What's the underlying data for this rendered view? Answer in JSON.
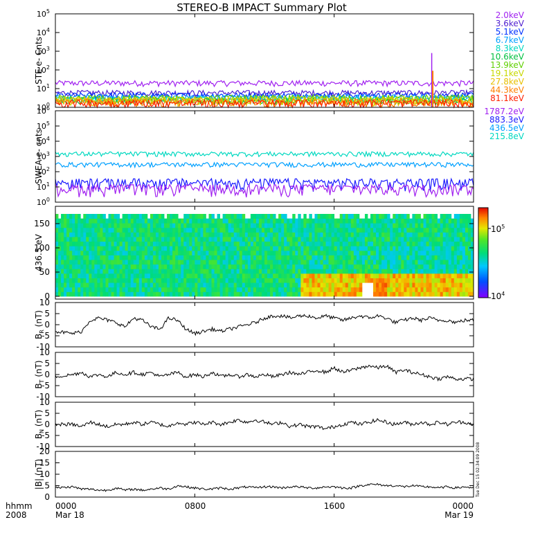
{
  "title": "STEREO-B IMPACT Summary Plot",
  "footer": {
    "hhmm_label": "hhmm",
    "year_label": "2008",
    "ticks": [
      "0000",
      "0800",
      "1600",
      "0000"
    ],
    "dates": [
      "Mar 18",
      "Mar 19"
    ],
    "timestamp": "Tue Dec 15 02:34:09 2008"
  },
  "chart_data": [
    {
      "type": "line",
      "panel": "ste",
      "ylabel": "STE e- Cnts",
      "yscale": "log",
      "ylim": [
        1,
        100000
      ],
      "yticks": [
        1,
        10,
        100,
        1000,
        10000,
        100000
      ],
      "x_range_hours": [
        0,
        24
      ],
      "legend_placement": "right",
      "series": [
        {
          "name": "2.0keV",
          "color": "#a020f0",
          "level": 20
        },
        {
          "name": "3.6keV",
          "color": "#5020d0",
          "level": 6
        },
        {
          "name": "5.1keV",
          "color": "#0030ff",
          "level": 4.5
        },
        {
          "name": "6.7keV",
          "color": "#00a0ff",
          "level": 3.5
        },
        {
          "name": "8.3keV",
          "color": "#00d8c0",
          "level": 2.8
        },
        {
          "name": "10.6keV",
          "color": "#00c040",
          "level": 2.2
        },
        {
          "name": "13.9keV",
          "color": "#60d000",
          "level": 1.9
        },
        {
          "name": "19.1keV",
          "color": "#c8d800",
          "level": 1.6
        },
        {
          "name": "27.8keV",
          "color": "#e8c000",
          "level": 1.4
        },
        {
          "name": "44.3keV",
          "color": "#ff8000",
          "level": 1.2
        },
        {
          "name": "81.1keV",
          "color": "#ff2000",
          "level": 1.05
        }
      ]
    },
    {
      "type": "line",
      "panel": "swea",
      "ylabel": "SWEA e- cnts",
      "yscale": "log",
      "ylim": [
        1,
        1000000
      ],
      "yticks": [
        1,
        10,
        100,
        1000,
        10000,
        100000,
        1000000
      ],
      "x_range_hours": [
        0,
        24
      ],
      "legend_placement": "right",
      "series": [
        {
          "name": "1787.2eV",
          "color": "#a020f0",
          "level": 5
        },
        {
          "name": "883.3eV",
          "color": "#1a1aff",
          "level": 12
        },
        {
          "name": "436.5eV",
          "color": "#00a0ff",
          "level": 300
        },
        {
          "name": "215.8eV",
          "color": "#00d8c0",
          "level": 1500
        }
      ]
    },
    {
      "type": "heatmap",
      "panel": "pad",
      "ylabel": "436.5 eV",
      "ylim": [
        0,
        180
      ],
      "yticks": [
        0,
        50,
        100,
        150
      ],
      "colorbar_ticks": [
        "10^4",
        "10^5"
      ],
      "colorbar_range_log10": [
        4,
        5.3
      ],
      "x_range_hours": [
        0,
        24
      ]
    },
    {
      "type": "line",
      "panel": "br",
      "ylabel": "B_R (nT)",
      "ylim": [
        -10,
        10
      ],
      "yticks": [
        -10,
        -5,
        0,
        5,
        10
      ],
      "x": [
        0,
        1,
        1.5,
        2,
        2.5,
        3,
        3.5,
        4,
        4.5,
        5,
        5.5,
        6,
        6.5,
        7,
        7.5,
        8,
        8.5,
        9,
        9.5,
        10,
        10.5,
        11,
        11.5,
        12,
        12.5,
        13,
        13.5,
        14,
        14.5,
        15,
        15.5,
        16,
        16.5,
        17,
        17.5,
        18,
        18.5,
        19,
        19.5,
        20,
        20.5,
        21,
        21.5,
        22,
        22.5,
        23,
        23.5,
        24
      ],
      "y": [
        -3,
        -4,
        -3,
        2,
        3,
        2,
        1,
        -1,
        3,
        2,
        -1,
        -2,
        3,
        2,
        -2,
        -4,
        -3,
        -2,
        -3,
        -2,
        -1,
        0,
        1,
        3,
        4,
        4,
        3,
        4,
        4,
        3,
        4,
        3,
        2,
        3,
        4,
        3,
        4,
        3,
        1,
        2,
        3,
        2,
        3,
        2,
        2,
        1,
        2,
        2
      ]
    },
    {
      "type": "line",
      "panel": "bt",
      "ylabel": "B_T (nT)",
      "ylim": [
        -10,
        10
      ],
      "yticks": [
        -10,
        -5,
        0,
        5,
        10
      ],
      "x": [
        0,
        1,
        1.5,
        2,
        2.5,
        3,
        3.5,
        4,
        4.5,
        5,
        5.5,
        6,
        6.5,
        7,
        7.5,
        8,
        8.5,
        9,
        9.5,
        10,
        10.5,
        11,
        11.5,
        12,
        12.5,
        13,
        13.5,
        14,
        14.5,
        15,
        15.5,
        16,
        16.5,
        17,
        17.5,
        18,
        18.5,
        19,
        19.5,
        20,
        20.5,
        21,
        21.5,
        22,
        22.5,
        23,
        23.5,
        24
      ],
      "y": [
        -1,
        0,
        1,
        -1,
        0,
        -1,
        1,
        0,
        1,
        0,
        1,
        -1,
        0,
        1,
        -1,
        0,
        -1,
        1,
        -1,
        0,
        -1,
        0,
        -1,
        0,
        -1,
        0,
        1,
        0,
        1,
        2,
        1,
        3,
        1,
        2,
        3,
        4,
        3,
        4,
        1,
        2,
        1,
        0,
        -1,
        -2,
        -1,
        -2,
        -2,
        -2
      ]
    },
    {
      "type": "line",
      "panel": "bn",
      "ylabel": "B_N (nT)",
      "ylim": [
        -10,
        10
      ],
      "yticks": [
        -10,
        -5,
        0,
        5,
        10
      ],
      "x": [
        0,
        1,
        1.5,
        2,
        2.5,
        3,
        3.5,
        4,
        4.5,
        5,
        5.5,
        6,
        6.5,
        7,
        7.5,
        8,
        8.5,
        9,
        9.5,
        10,
        10.5,
        11,
        11.5,
        12,
        12.5,
        13,
        13.5,
        14,
        14.5,
        15,
        15.5,
        16,
        16.5,
        17,
        17.5,
        18,
        18.5,
        19,
        19.5,
        20,
        20.5,
        21,
        21.5,
        22,
        22.5,
        23,
        23.5,
        24
      ],
      "y": [
        0,
        0,
        -1,
        1,
        0,
        -1,
        0,
        0,
        1,
        0,
        1,
        0,
        -1,
        1,
        0,
        1,
        0,
        1,
        0,
        1,
        2,
        1,
        2,
        1,
        0,
        1,
        -1,
        0,
        -1,
        -1,
        -2,
        -1,
        0,
        1,
        0,
        1,
        2,
        1,
        0,
        1,
        0,
        1,
        0,
        1,
        0,
        1,
        1,
        0
      ]
    },
    {
      "type": "line",
      "panel": "bmag",
      "ylabel": "|B| (nT)",
      "ylim": [
        0,
        20
      ],
      "yticks": [
        0,
        5,
        10,
        15,
        20
      ],
      "x": [
        0,
        1,
        1.5,
        2,
        2.5,
        3,
        3.5,
        4,
        4.5,
        5,
        5.5,
        6,
        6.5,
        7,
        7.5,
        8,
        8.5,
        9,
        9.5,
        10,
        10.5,
        11,
        11.5,
        12,
        12.5,
        13,
        13.5,
        14,
        14.5,
        15,
        15.5,
        16,
        16.5,
        17,
        17.5,
        18,
        18.5,
        19,
        19.5,
        20,
        20.5,
        21,
        21.5,
        22,
        22.5,
        23,
        23.5,
        24
      ],
      "y": [
        4,
        4.5,
        3.5,
        3.5,
        3,
        3,
        4,
        3,
        3.5,
        3,
        3.5,
        4,
        3.5,
        5,
        4.5,
        4,
        3.5,
        3.5,
        4,
        3.5,
        4,
        4.5,
        4,
        4.5,
        4.5,
        4,
        4.5,
        4.5,
        4,
        4,
        4.5,
        4.5,
        4,
        4,
        5,
        5.5,
        5.5,
        5,
        5,
        4.5,
        5,
        4.5,
        4.5,
        4,
        4.5,
        4,
        4.5,
        4
      ]
    }
  ]
}
